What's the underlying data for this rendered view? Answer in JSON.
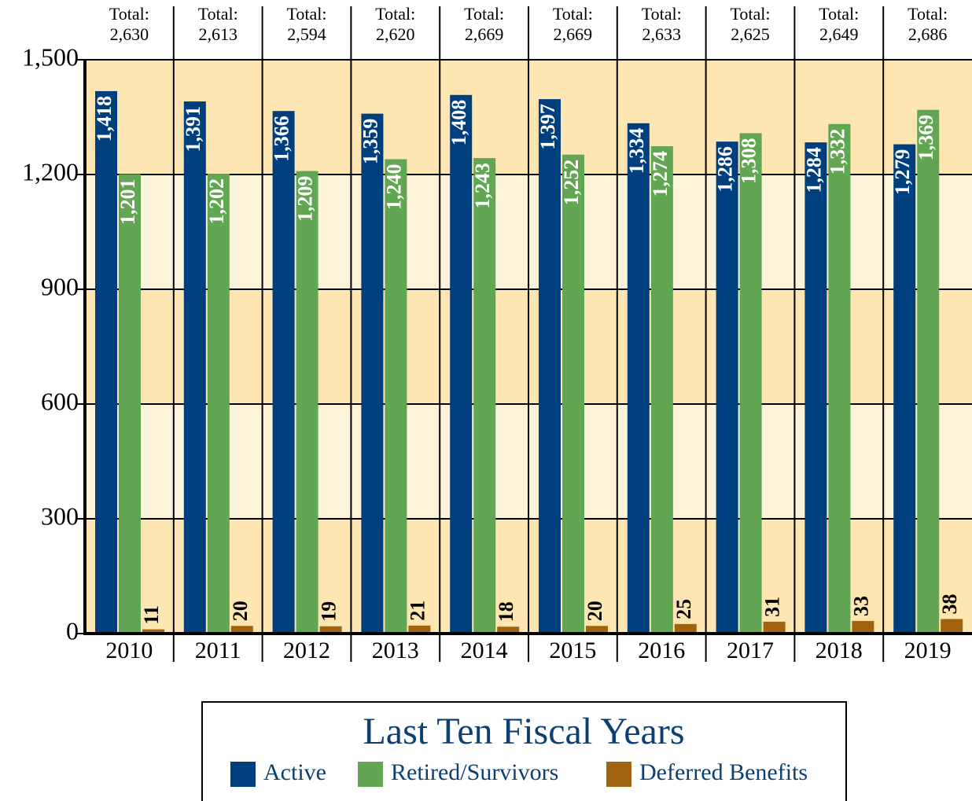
{
  "chart_data": {
    "type": "bar",
    "title": "Last Ten Fiscal Years",
    "categories": [
      "2010",
      "2011",
      "2012",
      "2013",
      "2014",
      "2015",
      "2016",
      "2017",
      "2018",
      "2019"
    ],
    "total_prefix": "Total:",
    "totals": [
      {
        "value": 2630,
        "label": "2,630"
      },
      {
        "value": 2613,
        "label": "2,613"
      },
      {
        "value": 2594,
        "label": "2,594"
      },
      {
        "value": 2620,
        "label": "2,620"
      },
      {
        "value": 2669,
        "label": "2,669"
      },
      {
        "value": 2669,
        "label": "2,669"
      },
      {
        "value": 2633,
        "label": "2,633"
      },
      {
        "value": 2625,
        "label": "2,625"
      },
      {
        "value": 2649,
        "label": "2,649"
      },
      {
        "value": 2686,
        "label": "2,686"
      }
    ],
    "series": [
      {
        "name": "Active",
        "color": "#003f7d",
        "values": [
          1418,
          1391,
          1366,
          1359,
          1408,
          1397,
          1334,
          1286,
          1284,
          1279
        ],
        "value_labels": [
          "1,418",
          "1,391",
          "1,366",
          "1,359",
          "1,408",
          "1,397",
          "1,334",
          "1,286",
          "1,284",
          "1,279"
        ]
      },
      {
        "name": "Retired/Survivors",
        "color": "#62a552",
        "values": [
          1201,
          1202,
          1209,
          1240,
          1243,
          1252,
          1274,
          1308,
          1332,
          1369
        ],
        "value_labels": [
          "1,201",
          "1,202",
          "1,209",
          "1,240",
          "1,243",
          "1,252",
          "1,274",
          "1,308",
          "1,332",
          "1,369"
        ]
      },
      {
        "name": "Deferred Benefits",
        "color": "#a0640f",
        "values": [
          11,
          20,
          19,
          21,
          18,
          20,
          25,
          31,
          33,
          38
        ]
      }
    ],
    "ylim": [
      0,
      1500
    ],
    "yticks": [
      0,
      300,
      600,
      900,
      {
        "value": 1200,
        "label": "1,200"
      },
      {
        "value": 1500,
        "label": "1,500"
      }
    ],
    "grid": true
  }
}
